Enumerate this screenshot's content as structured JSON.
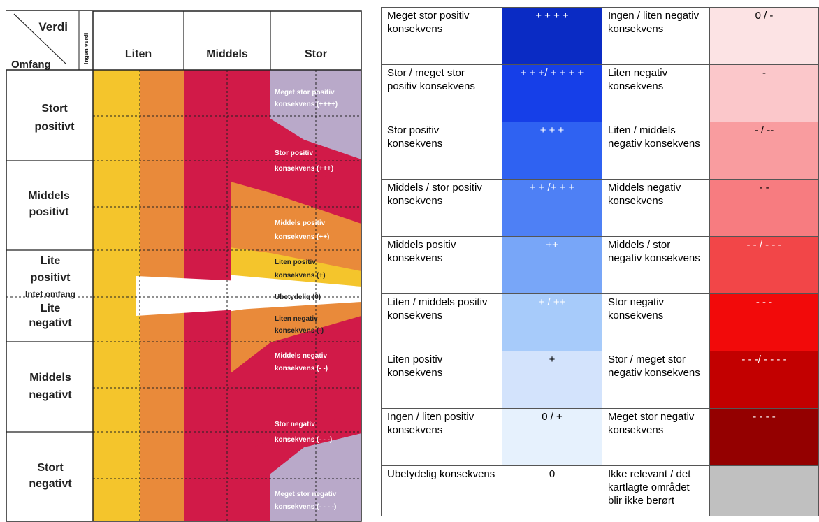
{
  "diagram": {
    "header": {
      "verdi": "Verdi",
      "omfang": "Omfang",
      "ingen_verdi": "Ingen verdi",
      "columns": [
        "Liten",
        "Middels",
        "Stor"
      ]
    },
    "rows": [
      {
        "line1": "Stort",
        "line2": "positivt"
      },
      {
        "line1": "Middels",
        "line2": "positivt"
      },
      {
        "line1": "Lite",
        "line2": "positivt"
      },
      {
        "line1": "Intet omfang",
        "line2": ""
      },
      {
        "line1": "Lite",
        "line2": "negativt"
      },
      {
        "line1": "Middels",
        "line2": "negativt"
      },
      {
        "line1": "Stort",
        "line2": "negativt"
      }
    ],
    "zones": [
      {
        "line1": "Meget stor positiv",
        "line2": "konsekvens (++++)"
      },
      {
        "line1": "Stor positiv",
        "line2": "konsekvens  (+++)"
      },
      {
        "line1": "Middels positiv",
        "line2": "konsekvens (++)"
      },
      {
        "line1": "Liten positiv",
        "line2": "konsekvens (+)"
      },
      {
        "line1": "Ubetydelig (0)",
        "line2": ""
      },
      {
        "line1": "Liten negativ",
        "line2": "konsekvens (-)"
      },
      {
        "line1": "Middels negativ",
        "line2": "konsekvens (- -)"
      },
      {
        "line1": "Stor negativ",
        "line2": "konsekvens (- - -)"
      },
      {
        "line1": "Meget stor negativ",
        "line2": "konsekvens  (- - - -)"
      }
    ],
    "colors": {
      "yellow": "#F4C52C",
      "orange": "#E98A3A",
      "red": "#D11A48",
      "lavender": "#B9A9C9"
    }
  },
  "legend": [
    {
      "pos_label": "Meget stor positiv konsekvens",
      "pos_symbol": "+ + + +",
      "pos_color": "#0A2BC4",
      "neg_label": "Ingen / liten negativ konsekvens",
      "neg_symbol": "0 / -",
      "neg_color": "#FCE3E4"
    },
    {
      "pos_label": "Stor / meget stor positiv konsekvens",
      "pos_symbol": "+ + +/ + + + +",
      "pos_color": "#163FE8",
      "neg_label": "Liten negativ konsekvens",
      "neg_symbol": "-",
      "neg_color": "#FBC7CA"
    },
    {
      "pos_label": "Stor positiv konsekvens",
      "pos_symbol": "+ + +",
      "pos_color": "#2F62F2",
      "neg_label": "Liten / middels negativ konsekvens",
      "neg_symbol": "- / --",
      "neg_color": "#F99C9F"
    },
    {
      "pos_label": "Middels / stor positiv konsekvens",
      "pos_symbol": "+ + /+ + +",
      "pos_color": "#4E80F5",
      "neg_label": "Middels negativ konsekvens",
      "neg_symbol": "- -",
      "neg_color": "#F77C80"
    },
    {
      "pos_label": "Middels positiv konsekvens",
      "pos_symbol": "++",
      "pos_color": "#78A6F8",
      "neg_label": "Middels / stor negativ konsekvens",
      "neg_symbol": "- - / - - -",
      "neg_color": "#F24648"
    },
    {
      "pos_label": "Liten / middels positiv konsekvens",
      "pos_symbol": "+ / ++",
      "pos_color": "#A7CBFA",
      "neg_label": "Stor negativ konsekvens",
      "neg_symbol": "- - -",
      "neg_color": "#F20A0A"
    },
    {
      "pos_label": "Liten positiv konsekvens",
      "pos_symbol": "+",
      "pos_color": "#D3E3FC",
      "neg_label": "Stor / meget stor negativ konsekvens",
      "neg_symbol": "- - -/ - - - -",
      "neg_color": "#C20000"
    },
    {
      "pos_label": "Ingen / liten positiv konsekvens",
      "pos_symbol": "0 / +",
      "pos_color": "#E6F1FD",
      "neg_label": "Meget stor negativ konsekvens",
      "neg_symbol": "- - - -",
      "neg_color": "#940000"
    },
    {
      "pos_label": "Ubetydelig konsekvens",
      "pos_symbol": "0",
      "pos_color": "#FFFFFF",
      "neg_label": "Ikke relevant / det kartlagte området blir ikke berørt",
      "neg_symbol": "",
      "neg_color": "#C0C0C0"
    }
  ]
}
